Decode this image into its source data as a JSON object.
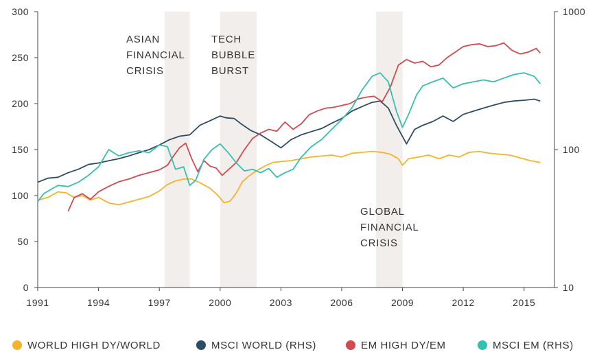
{
  "chart_data": {
    "type": "line",
    "title": "",
    "xlabel": "",
    "ylabel": "",
    "x_ticks": [
      "1991",
      "1994",
      "1997",
      "2000",
      "2003",
      "2006",
      "2009",
      "2012",
      "2015"
    ],
    "xlim": [
      1991,
      2016.5
    ],
    "y_left_ticks": [
      "0",
      "50",
      "100",
      "150",
      "200",
      "250",
      "300"
    ],
    "ylim_left": [
      0,
      300
    ],
    "y_right_ticks": [
      "10",
      "100",
      "1000"
    ],
    "ylim_right_log": [
      10,
      1000
    ],
    "shaded_periods": [
      {
        "label_lines": [
          "ASIAN",
          "FINANCIAL",
          "CRISIS"
        ],
        "start": 1997.25,
        "end": 1998.5
      },
      {
        "label_lines": [
          "TECH",
          "BUBBLE",
          "BURST"
        ],
        "start": 2000.0,
        "end": 2001.8
      },
      {
        "label_lines": [
          "GLOBAL",
          "FINANCIAL",
          "CRISIS"
        ],
        "start": 2007.7,
        "end": 2009.0
      }
    ],
    "series": [
      {
        "name": "WORLD HIGH DY/WORLD",
        "axis": "left",
        "color": "#F5B32B",
        "points": [
          [
            1991,
            95
          ],
          [
            1991.5,
            98
          ],
          [
            1992,
            104
          ],
          [
            1992.4,
            103
          ],
          [
            1992.8,
            98
          ],
          [
            1993.2,
            100
          ],
          [
            1993.6,
            95
          ],
          [
            1994,
            98
          ],
          [
            1994.5,
            92
          ],
          [
            1995,
            90
          ],
          [
            1995.5,
            93
          ],
          [
            1996,
            96
          ],
          [
            1996.5,
            99
          ],
          [
            1997,
            105
          ],
          [
            1997.4,
            112
          ],
          [
            1997.8,
            116
          ],
          [
            1998.2,
            118
          ],
          [
            1998.6,
            118
          ],
          [
            1999,
            114
          ],
          [
            1999.5,
            108
          ],
          [
            1999.9,
            100
          ],
          [
            2000.2,
            92
          ],
          [
            2000.5,
            94
          ],
          [
            2000.8,
            103
          ],
          [
            2001.1,
            115
          ],
          [
            2001.4,
            121
          ],
          [
            2001.8,
            127
          ],
          [
            2002.2,
            132
          ],
          [
            2002.6,
            136
          ],
          [
            2003,
            137
          ],
          [
            2003.5,
            138
          ],
          [
            2004,
            140
          ],
          [
            2004.5,
            142
          ],
          [
            2005,
            143
          ],
          [
            2005.5,
            144
          ],
          [
            2006,
            142
          ],
          [
            2006.5,
            146
          ],
          [
            2007,
            147
          ],
          [
            2007.5,
            148
          ],
          [
            2008,
            147
          ],
          [
            2008.4,
            145
          ],
          [
            2008.8,
            140
          ],
          [
            2009,
            133
          ],
          [
            2009.3,
            140
          ],
          [
            2009.8,
            142
          ],
          [
            2010.3,
            144
          ],
          [
            2010.8,
            140
          ],
          [
            2011.3,
            144
          ],
          [
            2011.8,
            142
          ],
          [
            2012.3,
            147
          ],
          [
            2012.8,
            148
          ],
          [
            2013.3,
            146
          ],
          [
            2013.8,
            145
          ],
          [
            2014.3,
            144
          ],
          [
            2014.8,
            141
          ],
          [
            2015.3,
            138
          ],
          [
            2015.8,
            136
          ]
        ]
      },
      {
        "name": "MSCI WORLD (RHS)",
        "axis": "right",
        "color": "#2D4B63",
        "points": [
          [
            1991,
            58
          ],
          [
            1991.5,
            62
          ],
          [
            1992,
            63
          ],
          [
            1992.5,
            68
          ],
          [
            1993,
            72
          ],
          [
            1993.5,
            78
          ],
          [
            1994,
            80
          ],
          [
            1994.5,
            83
          ],
          [
            1995,
            86
          ],
          [
            1995.5,
            90
          ],
          [
            1996,
            95
          ],
          [
            1996.5,
            100
          ],
          [
            1997,
            108
          ],
          [
            1997.5,
            118
          ],
          [
            1998,
            125
          ],
          [
            1998.5,
            128
          ],
          [
            1999,
            150
          ],
          [
            1999.5,
            162
          ],
          [
            2000,
            175
          ],
          [
            2000.3,
            170
          ],
          [
            2000.7,
            168
          ],
          [
            2001,
            155
          ],
          [
            2001.5,
            138
          ],
          [
            2002,
            128
          ],
          [
            2002.5,
            115
          ],
          [
            2003,
            103
          ],
          [
            2003.5,
            118
          ],
          [
            2004,
            128
          ],
          [
            2004.5,
            135
          ],
          [
            2005,
            142
          ],
          [
            2005.5,
            155
          ],
          [
            2006,
            168
          ],
          [
            2006.5,
            190
          ],
          [
            2007,
            205
          ],
          [
            2007.5,
            220
          ],
          [
            2007.9,
            225
          ],
          [
            2008.3,
            200
          ],
          [
            2008.7,
            150
          ],
          [
            2009.2,
            110
          ],
          [
            2009.6,
            140
          ],
          [
            2010,
            150
          ],
          [
            2010.5,
            160
          ],
          [
            2011,
            175
          ],
          [
            2011.5,
            160
          ],
          [
            2012,
            180
          ],
          [
            2012.5,
            190
          ],
          [
            2013,
            200
          ],
          [
            2013.5,
            210
          ],
          [
            2014,
            220
          ],
          [
            2014.5,
            225
          ],
          [
            2015,
            228
          ],
          [
            2015.5,
            232
          ],
          [
            2015.8,
            225
          ]
        ]
      },
      {
        "name": "EM HIGH DY/EM",
        "axis": "left",
        "color": "#D14A4F",
        "points": [
          [
            1992.5,
            83
          ],
          [
            1992.8,
            98
          ],
          [
            1993.2,
            102
          ],
          [
            1993.6,
            96
          ],
          [
            1994,
            104
          ],
          [
            1994.5,
            110
          ],
          [
            1995,
            115
          ],
          [
            1995.5,
            118
          ],
          [
            1996,
            122
          ],
          [
            1996.5,
            125
          ],
          [
            1997,
            128
          ],
          [
            1997.4,
            133
          ],
          [
            1997.7,
            143
          ],
          [
            1998,
            152
          ],
          [
            1998.3,
            157
          ],
          [
            1998.6,
            140
          ],
          [
            1998.9,
            126
          ],
          [
            1999.2,
            138
          ],
          [
            1999.5,
            132
          ],
          [
            1999.8,
            130
          ],
          [
            2000.1,
            122
          ],
          [
            2000.4,
            128
          ],
          [
            2000.8,
            136
          ],
          [
            2001.2,
            150
          ],
          [
            2001.6,
            162
          ],
          [
            2002,
            168
          ],
          [
            2002.4,
            172
          ],
          [
            2002.8,
            170
          ],
          [
            2003.2,
            180
          ],
          [
            2003.6,
            172
          ],
          [
            2004,
            178
          ],
          [
            2004.4,
            188
          ],
          [
            2004.8,
            192
          ],
          [
            2005.2,
            195
          ],
          [
            2005.6,
            196
          ],
          [
            2006,
            198
          ],
          [
            2006.4,
            200
          ],
          [
            2006.8,
            205
          ],
          [
            2007.2,
            207
          ],
          [
            2007.6,
            208
          ],
          [
            2008,
            202
          ],
          [
            2008.4,
            218
          ],
          [
            2008.8,
            242
          ],
          [
            2009.2,
            248
          ],
          [
            2009.6,
            244
          ],
          [
            2010,
            246
          ],
          [
            2010.4,
            240
          ],
          [
            2010.8,
            242
          ],
          [
            2011.2,
            250
          ],
          [
            2011.6,
            256
          ],
          [
            2012,
            262
          ],
          [
            2012.4,
            264
          ],
          [
            2012.8,
            265
          ],
          [
            2013.2,
            262
          ],
          [
            2013.6,
            263
          ],
          [
            2014,
            266
          ],
          [
            2014.4,
            258
          ],
          [
            2014.8,
            254
          ],
          [
            2015.2,
            256
          ],
          [
            2015.6,
            260
          ],
          [
            2015.8,
            255
          ]
        ]
      },
      {
        "name": "MSCI EM (RHS)",
        "axis": "right",
        "color": "#35BFB0",
        "points": [
          [
            1991,
            42
          ],
          [
            1991.3,
            48
          ],
          [
            1991.7,
            52
          ],
          [
            1992,
            55
          ],
          [
            1992.5,
            54
          ],
          [
            1993,
            58
          ],
          [
            1993.5,
            65
          ],
          [
            1994,
            75
          ],
          [
            1994.5,
            100
          ],
          [
            1995,
            90
          ],
          [
            1995.5,
            95
          ],
          [
            1996,
            98
          ],
          [
            1996.5,
            95
          ],
          [
            1997,
            108
          ],
          [
            1997.4,
            105
          ],
          [
            1997.8,
            72
          ],
          [
            1998.2,
            75
          ],
          [
            1998.5,
            55
          ],
          [
            1998.8,
            60
          ],
          [
            1999.2,
            85
          ],
          [
            1999.6,
            100
          ],
          [
            2000,
            110
          ],
          [
            2000.4,
            95
          ],
          [
            2000.8,
            80
          ],
          [
            2001.2,
            70
          ],
          [
            2001.6,
            72
          ],
          [
            2002,
            68
          ],
          [
            2002.4,
            73
          ],
          [
            2002.8,
            63
          ],
          [
            2003.2,
            68
          ],
          [
            2003.6,
            72
          ],
          [
            2004,
            88
          ],
          [
            2004.5,
            105
          ],
          [
            2005,
            118
          ],
          [
            2005.5,
            140
          ],
          [
            2006,
            165
          ],
          [
            2006.5,
            200
          ],
          [
            2007,
            270
          ],
          [
            2007.5,
            340
          ],
          [
            2007.9,
            360
          ],
          [
            2008.3,
            310
          ],
          [
            2008.7,
            190
          ],
          [
            2009,
            145
          ],
          [
            2009.3,
            180
          ],
          [
            2009.7,
            250
          ],
          [
            2010,
            290
          ],
          [
            2010.5,
            310
          ],
          [
            2011,
            330
          ],
          [
            2011.5,
            280
          ],
          [
            2012,
            300
          ],
          [
            2012.5,
            310
          ],
          [
            2013,
            320
          ],
          [
            2013.5,
            310
          ],
          [
            2014,
            330
          ],
          [
            2014.5,
            350
          ],
          [
            2015,
            360
          ],
          [
            2015.5,
            340
          ],
          [
            2015.8,
            300
          ]
        ]
      }
    ]
  }
}
